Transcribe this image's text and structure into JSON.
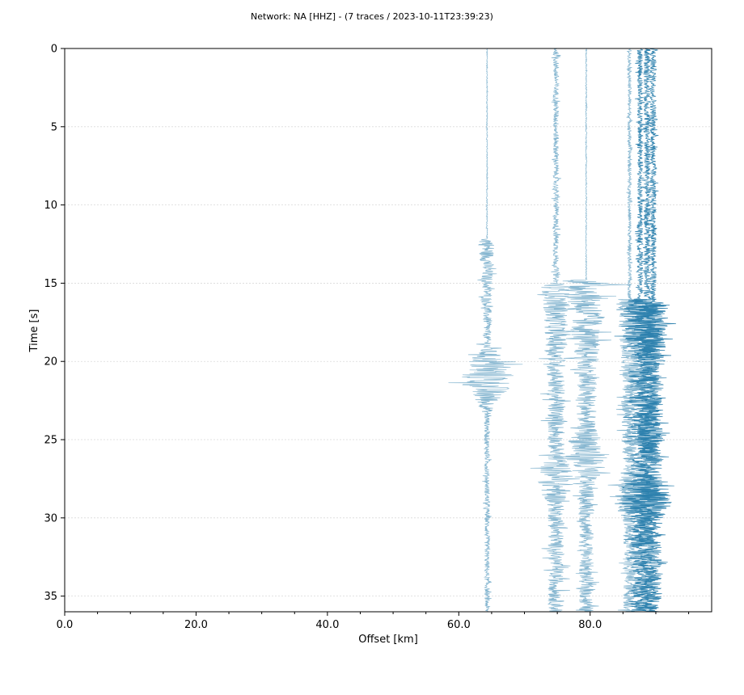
{
  "chart_data": {
    "type": "seismic-section",
    "title": "Network: NA [HHZ] - (7 traces / 2023-10-11T23:39:23)",
    "xlabel": "Offset [km]",
    "ylabel": "Time [s]",
    "xlim": [
      0,
      98.5
    ],
    "ylim": [
      36,
      0
    ],
    "x_ticks": [
      {
        "value": 0,
        "label": "0.0"
      },
      {
        "value": 20,
        "label": "20.0"
      },
      {
        "value": 40,
        "label": "40.0"
      },
      {
        "value": 60,
        "label": "60.0"
      },
      {
        "value": 80,
        "label": "80.0"
      }
    ],
    "x_minor_ticks": [
      5,
      10,
      15,
      25,
      30,
      35,
      45,
      50,
      55,
      65,
      70,
      75,
      85,
      90,
      95
    ],
    "y_ticks": [
      {
        "value": 0,
        "label": "0"
      },
      {
        "value": 5,
        "label": "5"
      },
      {
        "value": 10,
        "label": "10"
      },
      {
        "value": 15,
        "label": "15"
      },
      {
        "value": 20,
        "label": "20"
      },
      {
        "value": 25,
        "label": "25"
      },
      {
        "value": 30,
        "label": "30"
      },
      {
        "value": 35,
        "label": "35"
      }
    ],
    "grid": "horizontal",
    "traces": [
      {
        "offset_km": 64.3,
        "color": "#7fb2cd",
        "noise_amp_km": 0.15,
        "arrival_s": 12.2,
        "event_amp_km": 1.8,
        "peak_s": 21.0,
        "peak_amp_km": 7.5,
        "coda_amp_km": 0.7
      },
      {
        "offset_km": 74.8,
        "color": "#7fb2cd",
        "noise_amp_km": 0.8,
        "arrival_s": 15.0,
        "event_amp_km": 2.0,
        "peak_s": 27.5,
        "peak_amp_km": 4.0,
        "coda_amp_km": 2.2
      },
      {
        "offset_km": 79.4,
        "color": "#7fb2cd",
        "noise_amp_km": 0.15,
        "arrival_s": 14.8,
        "event_amp_km": 5.5,
        "peak_s": 26.0,
        "peak_amp_km": 5.5,
        "coda_amp_km": 2.0
      },
      {
        "offset_km": 86.0,
        "color": "#7fb2cd",
        "noise_amp_km": 0.5,
        "arrival_s": 16.0,
        "event_amp_km": 2.0,
        "peak_s": 28.5,
        "peak_amp_km": 3.0,
        "coda_amp_km": 1.8
      },
      {
        "offset_km": 87.6,
        "color": "#2b80ad",
        "noise_amp_km": 0.8,
        "arrival_s": 16.0,
        "event_amp_km": 2.8,
        "peak_s": 28.5,
        "peak_amp_km": 4.5,
        "coda_amp_km": 2.5
      },
      {
        "offset_km": 88.7,
        "color": "#2b80ad",
        "noise_amp_km": 1.0,
        "arrival_s": 16.0,
        "event_amp_km": 2.8,
        "peak_s": 28.5,
        "peak_amp_km": 4.8,
        "coda_amp_km": 2.5
      },
      {
        "offset_km": 89.6,
        "color": "#2b80ad",
        "noise_amp_km": 0.9,
        "arrival_s": 16.2,
        "event_amp_km": 2.5,
        "peak_s": 28.8,
        "peak_amp_km": 4.0,
        "coda_amp_km": 2.3
      }
    ]
  }
}
